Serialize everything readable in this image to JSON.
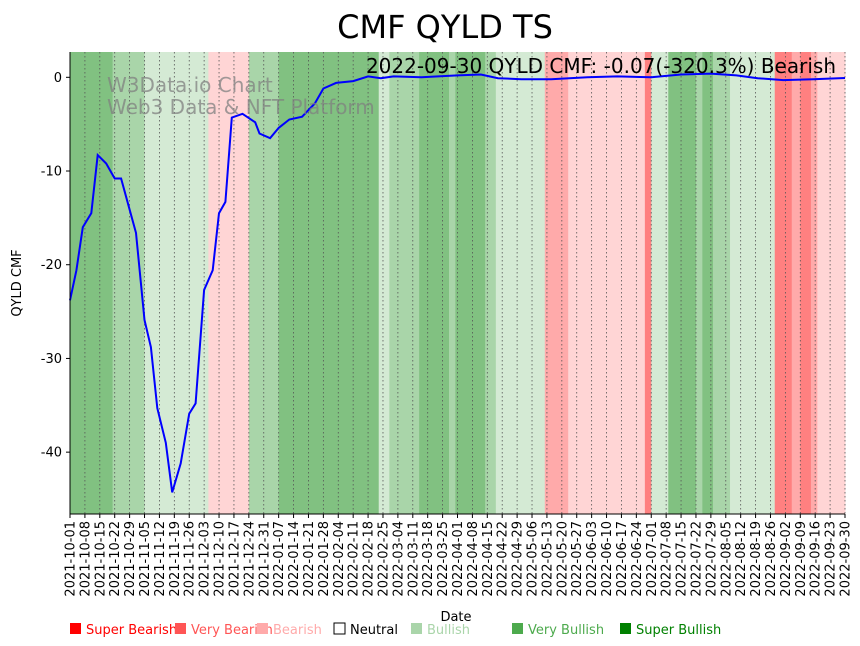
{
  "chart_data": {
    "type": "line",
    "title": "CMF QYLD TS",
    "xlabel": "Date",
    "ylabel": "QYLD CMF",
    "annotation": "2022-09-30 QYLD CMF: -0.07(-320.3%) Bearish",
    "watermark": [
      "W3Data.io Chart",
      "Web3 Data & NFT Platform"
    ],
    "xlim": [
      "2021-10-01",
      "2022-09-30"
    ],
    "ylim": [
      -46.6,
      2.7
    ],
    "yticks": [
      0,
      -10,
      -20,
      -30,
      -40
    ],
    "xticks": [
      "2021-10-01",
      "2021-10-08",
      "2021-10-15",
      "2021-10-22",
      "2021-10-29",
      "2021-11-05",
      "2021-11-12",
      "2021-11-19",
      "2021-11-26",
      "2021-12-03",
      "2021-12-10",
      "2021-12-17",
      "2021-12-24",
      "2021-12-31",
      "2022-01-07",
      "2022-01-14",
      "2022-01-21",
      "2022-01-28",
      "2022-02-04",
      "2022-02-11",
      "2022-02-18",
      "2022-02-25",
      "2022-03-04",
      "2022-03-11",
      "2022-03-18",
      "2022-03-25",
      "2022-04-01",
      "2022-04-08",
      "2022-04-15",
      "2022-04-22",
      "2022-04-29",
      "2022-05-06",
      "2022-05-13",
      "2022-05-20",
      "2022-05-27",
      "2022-06-03",
      "2022-06-10",
      "2022-06-17",
      "2022-06-24",
      "2022-07-01",
      "2022-07-08",
      "2022-07-15",
      "2022-07-22",
      "2022-07-29",
      "2022-08-05",
      "2022-08-12",
      "2022-08-19",
      "2022-08-26",
      "2022-09-02",
      "2022-09-09",
      "2022-09-16",
      "2022-09-23",
      "2022-09-30"
    ],
    "series": [
      {
        "name": "QYLD CMF",
        "color": "#0000ff",
        "points": [
          [
            "2021-10-01",
            -23.8
          ],
          [
            "2021-10-04",
            -20.6
          ],
          [
            "2021-10-07",
            -16.0
          ],
          [
            "2021-10-11",
            -14.5
          ],
          [
            "2021-10-14",
            -8.3
          ],
          [
            "2021-10-18",
            -9.2
          ],
          [
            "2021-10-22",
            -10.8
          ],
          [
            "2021-10-25",
            -10.8
          ],
          [
            "2021-11-01",
            -16.6
          ],
          [
            "2021-11-05",
            -25.9
          ],
          [
            "2021-11-08",
            -28.8
          ],
          [
            "2021-11-11",
            -35.3
          ],
          [
            "2021-11-15",
            -39.0
          ],
          [
            "2021-11-18",
            -44.3
          ],
          [
            "2021-11-22",
            -41.2
          ],
          [
            "2021-11-26",
            -35.9
          ],
          [
            "2021-11-29",
            -34.8
          ],
          [
            "2021-12-03",
            -22.7
          ],
          [
            "2021-12-07",
            -20.6
          ],
          [
            "2021-12-10",
            -14.5
          ],
          [
            "2021-12-13",
            -13.3
          ],
          [
            "2021-12-16",
            -4.3
          ],
          [
            "2021-12-21",
            -3.9
          ],
          [
            "2021-12-27",
            -4.8
          ],
          [
            "2021-12-29",
            -6.0
          ],
          [
            "2022-01-03",
            -6.5
          ],
          [
            "2022-01-07",
            -5.4
          ],
          [
            "2022-01-12",
            -4.5
          ],
          [
            "2022-01-18",
            -4.2
          ],
          [
            "2022-01-24",
            -2.8
          ],
          [
            "2022-01-28",
            -1.2
          ],
          [
            "2022-02-03",
            -0.6
          ],
          [
            "2022-02-11",
            -0.4
          ],
          [
            "2022-02-18",
            0.1
          ],
          [
            "2022-02-24",
            -0.1
          ],
          [
            "2022-03-02",
            0.1
          ],
          [
            "2022-03-15",
            0.0
          ],
          [
            "2022-04-01",
            0.2
          ],
          [
            "2022-04-12",
            0.3
          ],
          [
            "2022-04-20",
            -0.1
          ],
          [
            "2022-05-01",
            -0.2
          ],
          [
            "2022-05-15",
            -0.2
          ],
          [
            "2022-06-01",
            0.0
          ],
          [
            "2022-06-15",
            0.1
          ],
          [
            "2022-07-01",
            0.0
          ],
          [
            "2022-07-15",
            0.3
          ],
          [
            "2022-07-29",
            0.4
          ],
          [
            "2022-08-10",
            0.2
          ],
          [
            "2022-08-20",
            -0.1
          ],
          [
            "2022-09-01",
            -0.3
          ],
          [
            "2022-09-15",
            -0.2
          ],
          [
            "2022-09-30",
            -0.07
          ]
        ]
      }
    ],
    "bands": [
      [
        "2021-10-01",
        "2021-10-21",
        "very_bullish"
      ],
      [
        "2021-10-21",
        "2021-11-05",
        "bullish"
      ],
      [
        "2021-11-05",
        "2021-12-05",
        "light_bullish"
      ],
      [
        "2021-12-05",
        "2021-12-24",
        "light_bearish"
      ],
      [
        "2021-12-24",
        "2022-01-07",
        "bullish"
      ],
      [
        "2022-01-07",
        "2022-02-23",
        "very_bullish"
      ],
      [
        "2022-02-23",
        "2022-02-28",
        "light_bullish"
      ],
      [
        "2022-02-28",
        "2022-03-14",
        "bullish"
      ],
      [
        "2022-03-14",
        "2022-03-28",
        "very_bullish"
      ],
      [
        "2022-03-28",
        "2022-03-31",
        "bullish"
      ],
      [
        "2022-03-31",
        "2022-04-14",
        "very_bullish"
      ],
      [
        "2022-04-14",
        "2022-04-19",
        "bullish"
      ],
      [
        "2022-04-19",
        "2022-05-12",
        "light_bullish"
      ],
      [
        "2022-05-12",
        "2022-05-23",
        "bearish"
      ],
      [
        "2022-05-23",
        "2022-06-28",
        "light_bearish"
      ],
      [
        "2022-06-28",
        "2022-07-01",
        "very_bearish"
      ],
      [
        "2022-07-01",
        "2022-07-09",
        "light_bullish"
      ],
      [
        "2022-07-09",
        "2022-07-22",
        "very_bullish"
      ],
      [
        "2022-07-22",
        "2022-07-25",
        "bullish"
      ],
      [
        "2022-07-25",
        "2022-07-30",
        "very_bullish"
      ],
      [
        "2022-07-30",
        "2022-08-07",
        "bullish"
      ],
      [
        "2022-08-07",
        "2022-08-28",
        "light_bullish"
      ],
      [
        "2022-08-28",
        "2022-09-05",
        "very_bearish"
      ],
      [
        "2022-09-05",
        "2022-09-09",
        "bearish"
      ],
      [
        "2022-09-09",
        "2022-09-14",
        "very_bearish"
      ],
      [
        "2022-09-14",
        "2022-09-17",
        "bearish"
      ],
      [
        "2022-09-17",
        "2022-09-30",
        "light_bearish"
      ]
    ],
    "band_colors": {
      "very_bullish": "#81c181",
      "bullish": "#a9d5a9",
      "light_bullish": "#d4ead4",
      "light_bearish": "#ffd5d5",
      "bearish": "#ffaaaa",
      "very_bearish": "#ff8080"
    },
    "legend": [
      {
        "label": "Super Bearish",
        "color": "#ff0000"
      },
      {
        "label": "Very Bearish",
        "color": "#ff5555"
      },
      {
        "label": "Bearish",
        "color": "#ffaaaa"
      },
      {
        "label": "Neutral",
        "color": "#000000"
      },
      {
        "label": "Bullish",
        "color": "#aad5aa"
      },
      {
        "label": "Very Bullish",
        "color": "#4daa4d"
      },
      {
        "label": "Super Bullish",
        "color": "#008000"
      }
    ],
    "legend_placement": "bottom"
  }
}
